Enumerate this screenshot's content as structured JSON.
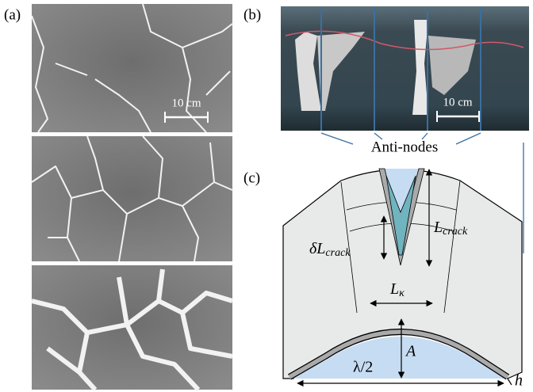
{
  "panels": {
    "a": "(a)",
    "b": "(b)",
    "c": "(c)"
  },
  "scale_a": "10 cm",
  "scale_b": "10 cm",
  "antinodes": "Anti-nodes",
  "diagram": {
    "l_crack": {
      "main": "L",
      "sub": "crack"
    },
    "dl_crack": {
      "main": "δL",
      "sub": "crack"
    },
    "l_kappa": {
      "main": "L",
      "sub": "κ"
    },
    "amplitude": "A",
    "half_wavelength": "λ/2",
    "thickness": "h"
  }
}
